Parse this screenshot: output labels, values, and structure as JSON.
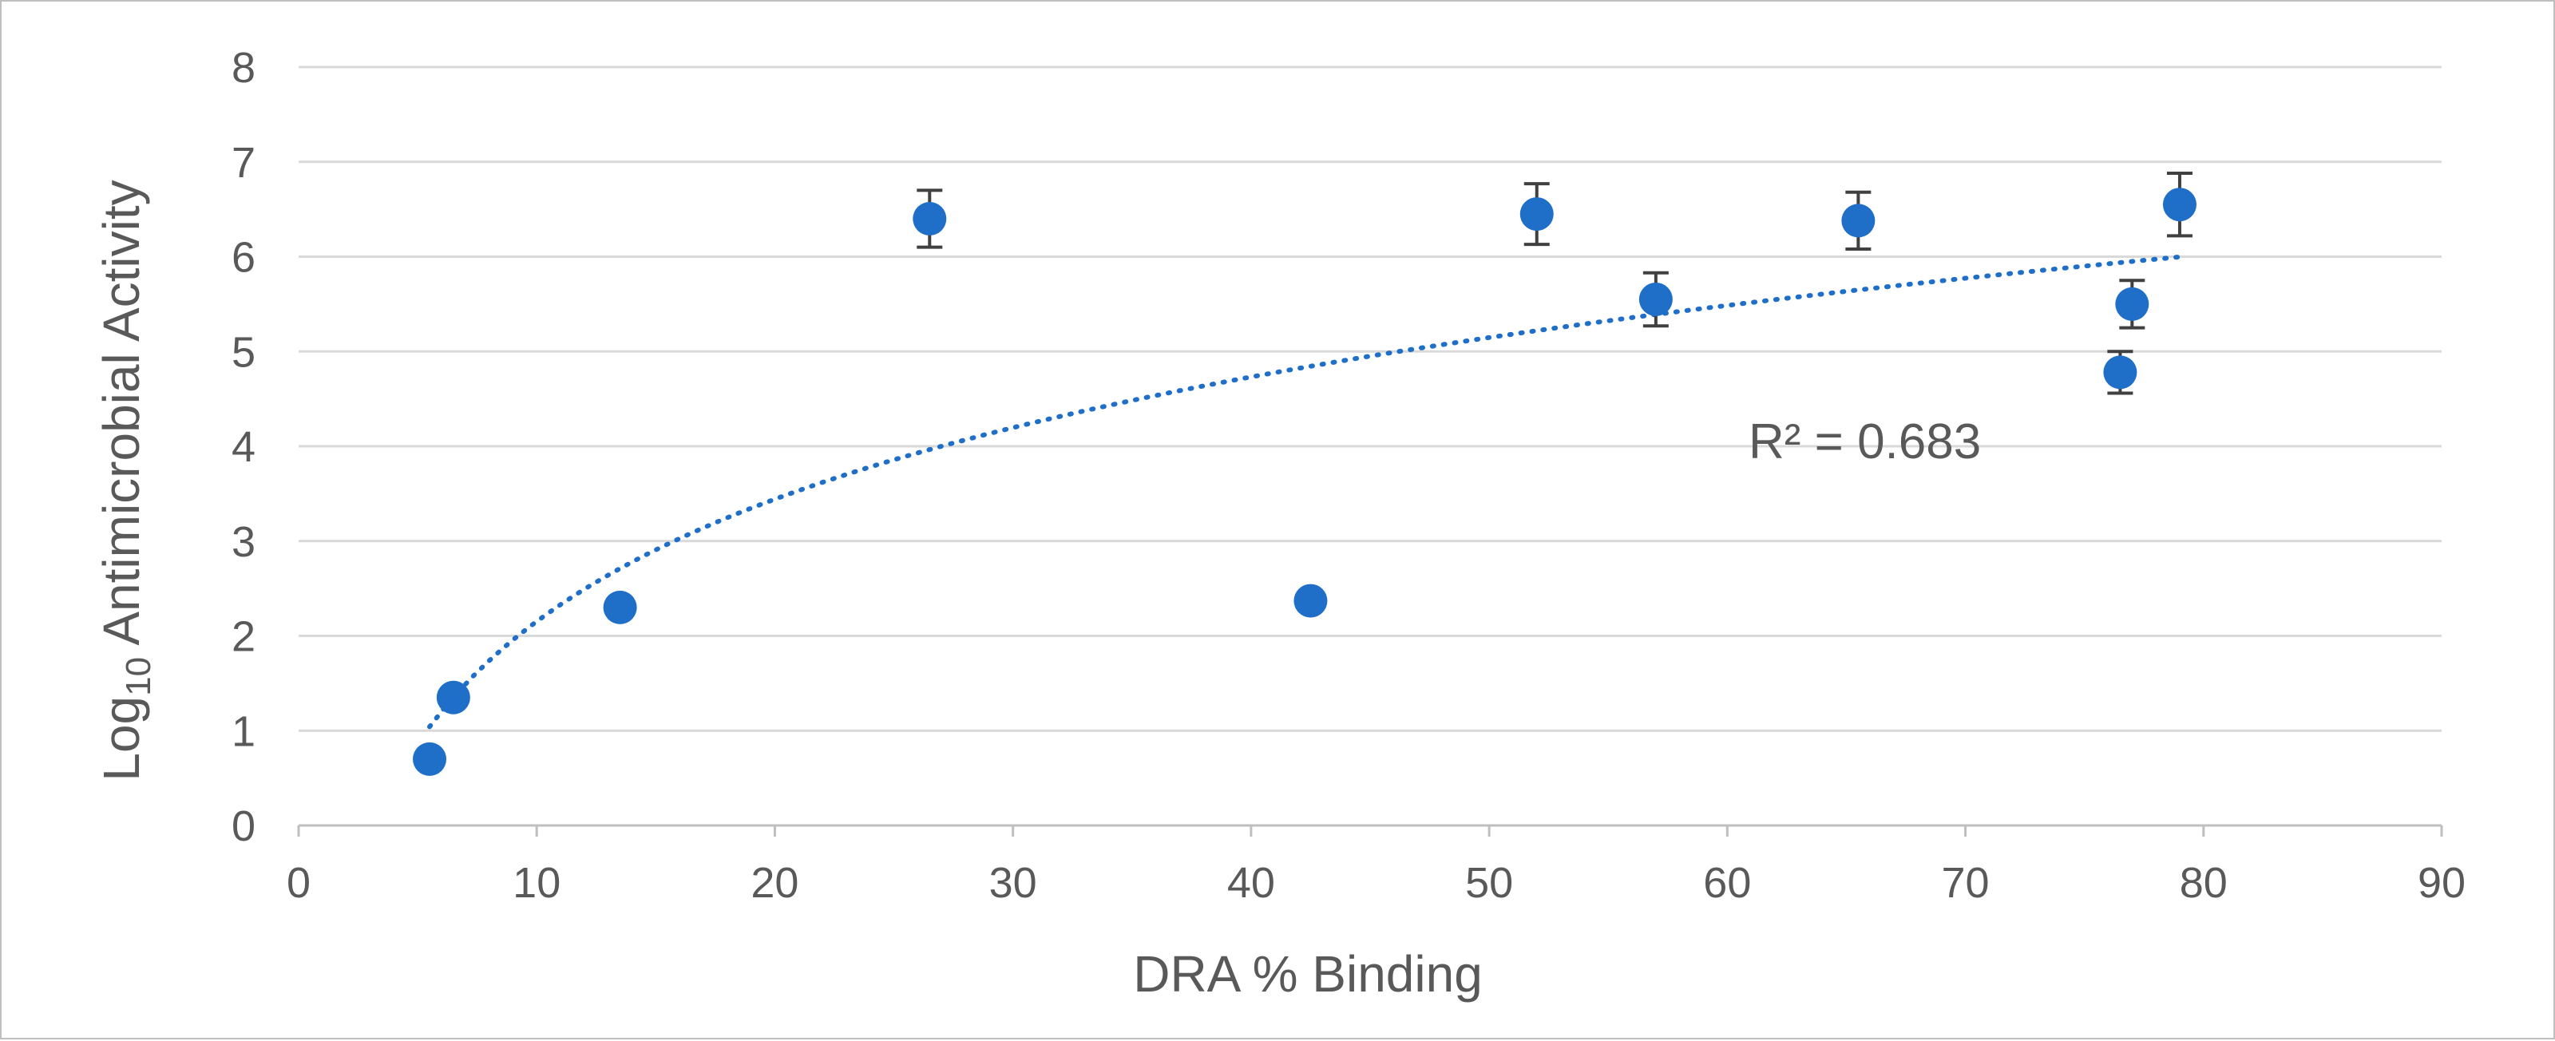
{
  "chart_data": {
    "type": "scatter",
    "title": "",
    "xlabel": "DRA % Binding",
    "ylabel_main": "Log",
    "ylabel_sub": "10",
    "ylabel_rest": " Antimicrobial Activity",
    "xlim": [
      0,
      90
    ],
    "ylim": [
      0,
      8
    ],
    "x_ticks": [
      0,
      10,
      20,
      30,
      40,
      50,
      60,
      70,
      80,
      90
    ],
    "y_ticks": [
      0,
      1,
      2,
      3,
      4,
      5,
      6,
      7,
      8
    ],
    "grid": "horizontal",
    "series": [
      {
        "name": "Log10 Antimicrobial Activity",
        "color": "#1f6fc9",
        "points": [
          {
            "x": 5.5,
            "y": 0.7,
            "err": 0.0
          },
          {
            "x": 6.5,
            "y": 1.35,
            "err": 0.08
          },
          {
            "x": 13.5,
            "y": 2.3,
            "err": 0.08
          },
          {
            "x": 26.5,
            "y": 6.4,
            "err": 0.3
          },
          {
            "x": 42.5,
            "y": 2.37,
            "err": 0.08
          },
          {
            "x": 52.0,
            "y": 6.45,
            "err": 0.32
          },
          {
            "x": 57.0,
            "y": 5.55,
            "err": 0.28
          },
          {
            "x": 65.5,
            "y": 6.38,
            "err": 0.3
          },
          {
            "x": 76.5,
            "y": 4.78,
            "err": 0.22
          },
          {
            "x": 77.0,
            "y": 5.5,
            "err": 0.25
          },
          {
            "x": 79.0,
            "y": 6.55,
            "err": 0.33
          }
        ]
      }
    ],
    "trendline": {
      "type": "logarithmic",
      "a": -2.13,
      "b": 1.86,
      "x_range": [
        5.5,
        79.0
      ],
      "style": "dotted",
      "color": "#1f6fc9",
      "label": "R² = 0.683"
    },
    "error_bar_color": "#404040"
  }
}
